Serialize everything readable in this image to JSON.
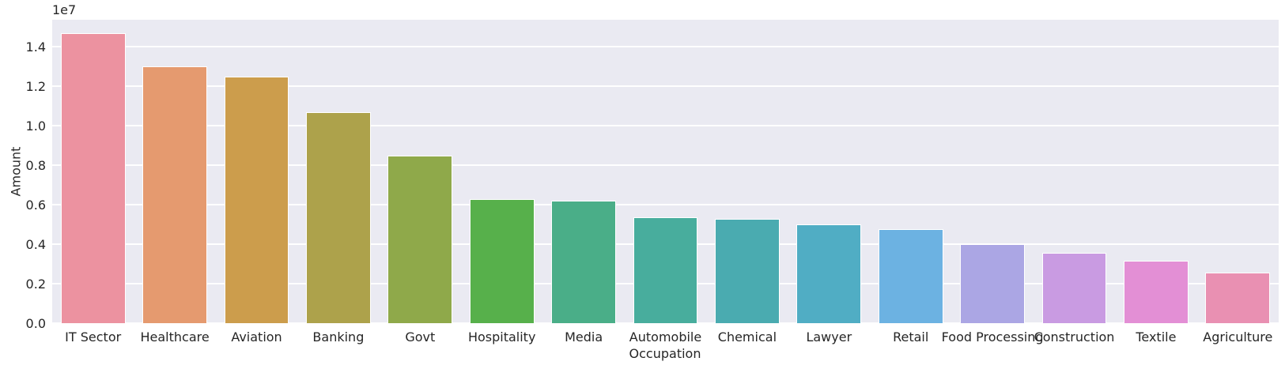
{
  "chart_data": {
    "type": "bar",
    "title": "",
    "xlabel": "Occupation",
    "ylabel": "Amount",
    "y_offset_text": "1e7",
    "grid": true,
    "legend": false,
    "plot_bg_color": "#eaeaf2",
    "gridline_color": "#ffffff",
    "text_color": "#262626",
    "ylim": [
      0,
      15360000
    ],
    "y_ticks": [
      {
        "v": 0,
        "label": "0.0"
      },
      {
        "v": 2000000,
        "label": "0.2"
      },
      {
        "v": 4000000,
        "label": "0.4"
      },
      {
        "v": 6000000,
        "label": "0.6"
      },
      {
        "v": 8000000,
        "label": "0.8"
      },
      {
        "v": 10000000,
        "label": "1.0"
      },
      {
        "v": 12000000,
        "label": "1.2"
      },
      {
        "v": 14000000,
        "label": "1.4"
      }
    ],
    "categories": [
      "IT Sector",
      "Healthcare",
      "Aviation",
      "Banking",
      "Govt",
      "Hospitality",
      "Media",
      "Automobile",
      "Chemical",
      "Lawyer",
      "Retail",
      "Food Processing",
      "Construction",
      "Textile",
      "Agriculture"
    ],
    "values": [
      14700000,
      13000000,
      12500000,
      10700000,
      8500000,
      6300000,
      6200000,
      5350000,
      5300000,
      5000000,
      4750000,
      4000000,
      3550000,
      3150000,
      2550000
    ],
    "bar_colors": [
      "#ec92a0",
      "#e59a6f",
      "#cc9d4c",
      "#ada24b",
      "#8fa94a",
      "#57b04b",
      "#4aae88",
      "#48ad9d",
      "#4aabb0",
      "#50adc4",
      "#6cb2e2",
      "#aba6e4",
      "#c99be2",
      "#e38fd5",
      "#e990b2"
    ]
  }
}
